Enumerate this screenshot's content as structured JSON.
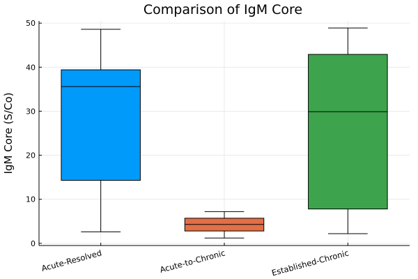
{
  "chart_data": {
    "type": "box",
    "title": "Comparison of IgM Core",
    "xlabel": "",
    "ylabel": "IgM Core (S/Co)",
    "ylim": [
      -0.5,
      50.5
    ],
    "yticks": [
      0,
      10,
      20,
      30,
      40,
      50
    ],
    "grid": true,
    "legend": "none",
    "categories": [
      "Acute-Resolved",
      "Acute-to-Chronic",
      "Established-Chronic"
    ],
    "boxes": [
      {
        "category": "Acute-Resolved",
        "whisker_low": 2.6,
        "q1": 14.3,
        "median": 35.6,
        "q3": 39.4,
        "whisker_high": 48.6,
        "color": "#009AFA"
      },
      {
        "category": "Acute-to-Chronic",
        "whisker_low": 1.2,
        "q1": 2.8,
        "median": 4.3,
        "q3": 5.7,
        "whisker_high": 7.2,
        "color": "#E26F46"
      },
      {
        "category": "Established-Chronic",
        "whisker_low": 2.2,
        "q1": 7.8,
        "median": 29.9,
        "q3": 42.9,
        "whisker_high": 48.9,
        "color": "#3DA44D"
      }
    ]
  }
}
